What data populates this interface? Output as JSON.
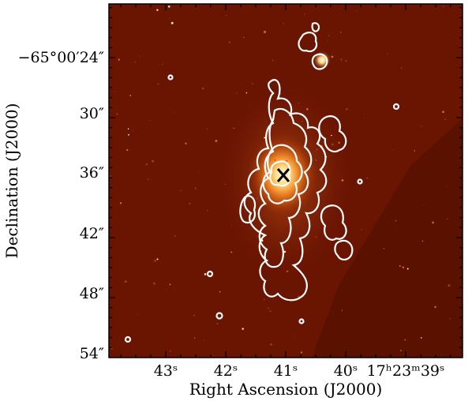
{
  "figure": {
    "x_axis_title": "Right Ascension (J2000)",
    "y_axis_title": "Declination (J2000)",
    "x_ticks": [
      {
        "text": "43ˢ",
        "ra_sec": 43
      },
      {
        "text": "42ˢ",
        "ra_sec": 42
      },
      {
        "text": "41ˢ",
        "ra_sec": 41
      },
      {
        "text": "40ˢ",
        "ra_sec": 40
      },
      {
        "text": "17ʰ23ᵐ39ˢ",
        "ra_sec": 39
      }
    ],
    "y_ticks": [
      {
        "text": "−65°00′24″",
        "dec_arcsec": 24
      },
      {
        "text": "30″",
        "dec_arcsec": 30
      },
      {
        "text": "36″",
        "dec_arcsec": 36
      },
      {
        "text": "42″",
        "dec_arcsec": 42
      },
      {
        "text": "48″",
        "dec_arcsec": 48
      },
      {
        "text": "54″",
        "dec_arcsec": 54
      }
    ],
    "colors": {
      "background": "#6a1402",
      "core": "#fffbe8",
      "contour": "#ffffff",
      "frame": "#000000"
    }
  }
}
